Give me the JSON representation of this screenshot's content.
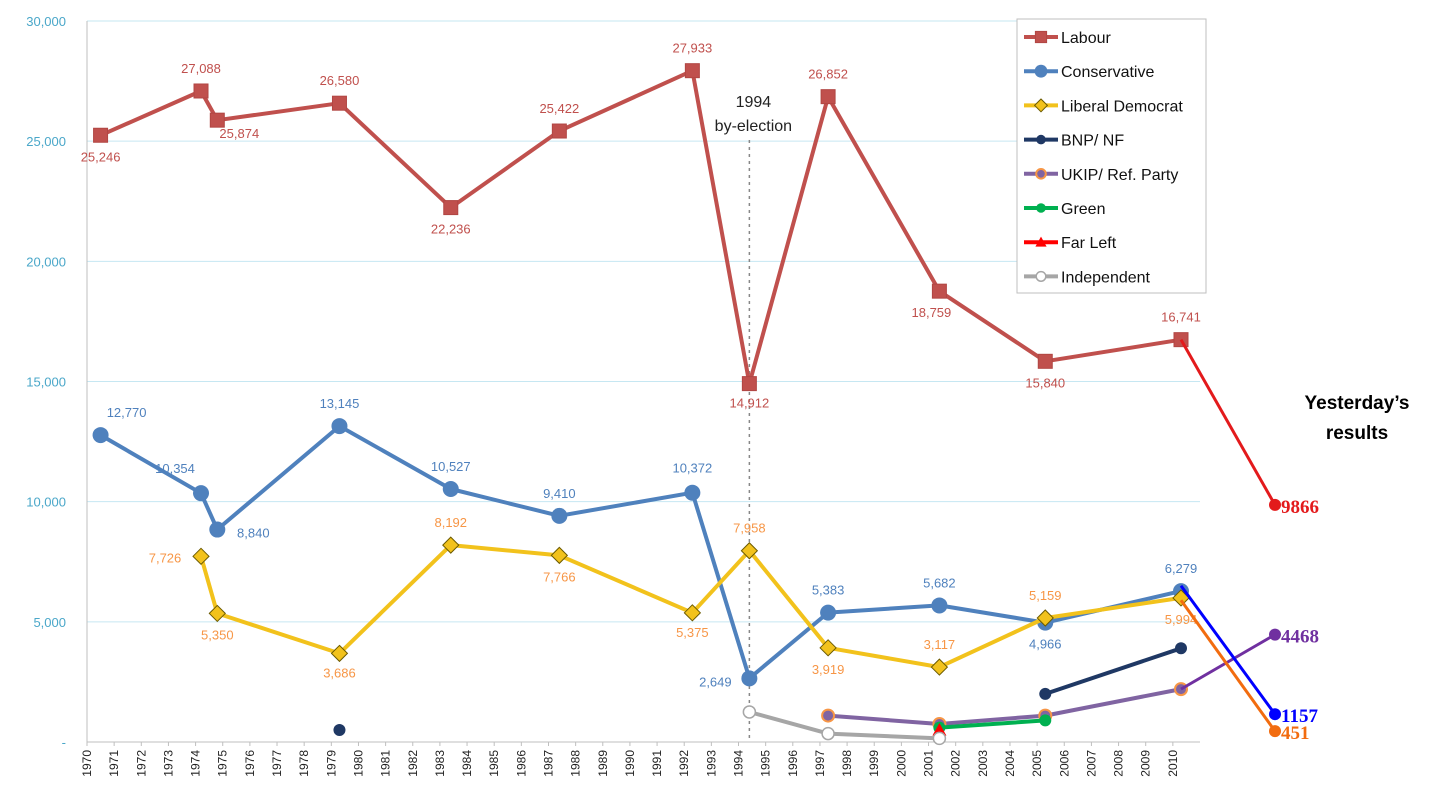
{
  "chart_data": {
    "type": "line",
    "ylim": [
      0,
      30000
    ],
    "xlim": [
      1970,
      2011
    ],
    "y_ticks": [
      "30,000",
      "25,000",
      "20,000",
      "15,000",
      "10,000",
      "5,000",
      "-"
    ],
    "x_ticks": [
      "1970",
      "1971",
      "1972",
      "1973",
      "1974",
      "1975",
      "1976",
      "1977",
      "1978",
      "1979",
      "1980",
      "1981",
      "1982",
      "1983",
      "1984",
      "1985",
      "1986",
      "1987",
      "1988",
      "1989",
      "1990",
      "1991",
      "1992",
      "1993",
      "1994",
      "1995",
      "1996",
      "1997",
      "1998",
      "1999",
      "2000",
      "2001",
      "2002",
      "2003",
      "2004",
      "2005",
      "2006",
      "2007",
      "2008",
      "2009",
      "2010"
    ],
    "grid": true,
    "legend_position": "top-right",
    "event": {
      "x": 1994.4,
      "label_line1": "1994",
      "label_line2": "by-election"
    },
    "series": [
      {
        "name": "Labour",
        "color": "#c0504d",
        "marker": "square",
        "x": [
          1970.5,
          1974.2,
          1974.8,
          1979.3,
          1983.4,
          1987.4,
          1992.3,
          1994.4,
          1997.3,
          2001.4,
          2005.3,
          2010.3
        ],
        "y": [
          25246,
          27088,
          25874,
          26580,
          22236,
          25422,
          27933,
          14912,
          26852,
          18759,
          15840,
          16741
        ],
        "labels": [
          "25,246",
          "27,088",
          "25,874",
          "26,580",
          "22,236",
          "25,422",
          "27,933",
          "14,912",
          "26,852",
          "18,759",
          "15,840",
          "16,741"
        ],
        "label_color": "#c0504d"
      },
      {
        "name": "Conservative",
        "color": "#4f81bd",
        "marker": "circle",
        "x": [
          1970.5,
          1974.2,
          1974.8,
          1979.3,
          1983.4,
          1987.4,
          1992.3,
          1994.4,
          1997.3,
          2001.4,
          2005.3,
          2010.3
        ],
        "y": [
          12770,
          10354,
          8840,
          13145,
          10527,
          9410,
          10372,
          2649,
          5383,
          5682,
          4966,
          6279
        ],
        "labels": [
          "12,770",
          "10,354",
          "8,840",
          "13,145",
          "10,527",
          "9,410",
          "10,372",
          "2,649",
          "5,383",
          "5,682",
          "4,966",
          "6,279"
        ],
        "label_color": "#4f81bd"
      },
      {
        "name": "Liberal Democrat",
        "color": "#f2c21c",
        "marker": "diamond",
        "x": [
          1974.2,
          1974.8,
          1979.3,
          1983.4,
          1987.4,
          1992.3,
          1994.4,
          1997.3,
          2001.4,
          2005.3,
          2010.3
        ],
        "y": [
          7726,
          5350,
          3686,
          8192,
          7766,
          5375,
          7958,
          3919,
          3117,
          5159,
          5994
        ],
        "labels": [
          "7,726",
          "5,350",
          "3,686",
          "8,192",
          "7,766",
          "5,375",
          "7,958",
          "3,919",
          "3,117",
          "5,159",
          "5,994"
        ],
        "label_color": "#f79646"
      },
      {
        "name": "BNP/ NF",
        "color": "#1f3864",
        "marker": "circle",
        "x": [
          1979.3,
          2005.3,
          2010.3
        ],
        "y": [
          500,
          2000,
          3900
        ],
        "connect_from": 1
      },
      {
        "name": "UKIP/ Ref. Party",
        "color": "#8064a2",
        "marker": "circle-orange",
        "x": [
          1997.3,
          2001.4,
          2005.3,
          2010.3
        ],
        "y": [
          1100,
          750,
          1100,
          2200
        ]
      },
      {
        "name": "Green",
        "color": "#00b050",
        "marker": "circle",
        "x": [
          2001.4,
          2005.3
        ],
        "y": [
          600,
          900
        ]
      },
      {
        "name": "Far Left",
        "color": "#ff0000",
        "marker": "triangle",
        "x": [
          2001.4
        ],
        "y": [
          500
        ]
      },
      {
        "name": "Independent",
        "color": "#a6a6a6",
        "marker": "circle-open",
        "x": [
          1994.4,
          1997.3,
          2001.4
        ],
        "y": [
          1250,
          350,
          150
        ]
      }
    ],
    "yesterday": {
      "title_line1": "Yesterday’s",
      "title_line2": "results",
      "results": [
        {
          "value": 9866,
          "label": "9866",
          "color": "#e31a1c",
          "from_x": 2010.3,
          "from_y": 16741
        },
        {
          "value": 4468,
          "label": "4468",
          "color": "#7030a0",
          "from_x": 2010.3,
          "from_y": 2200
        },
        {
          "value": 1157,
          "label": "1157",
          "color": "#0000ff",
          "from_x": 2010.3,
          "from_y": 6500
        },
        {
          "value": 451,
          "label": "451",
          "color": "#f26c0f",
          "from_x": 2010.3,
          "from_y": 5900
        }
      ]
    }
  }
}
